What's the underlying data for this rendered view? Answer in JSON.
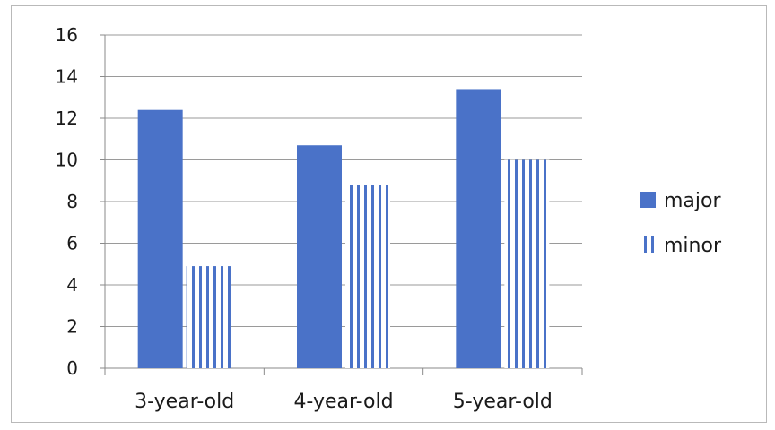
{
  "chart_data": {
    "type": "bar",
    "categories": [
      "3-year-old",
      "4-year-old",
      "5-year-old"
    ],
    "series": [
      {
        "name": "major",
        "values": [
          12.4,
          10.7,
          13.4
        ],
        "color": "#4a72c8",
        "pattern": "solid"
      },
      {
        "name": "minor",
        "values": [
          4.9,
          8.8,
          10.0
        ],
        "color": "#4a72c8",
        "pattern": "vertical-stripes"
      }
    ],
    "ylim": [
      0,
      16
    ],
    "yticks": [
      0,
      2,
      4,
      6,
      8,
      10,
      12,
      14,
      16
    ],
    "grid": true,
    "legend_position": "right",
    "title": "",
    "xlabel": "",
    "ylabel": ""
  }
}
